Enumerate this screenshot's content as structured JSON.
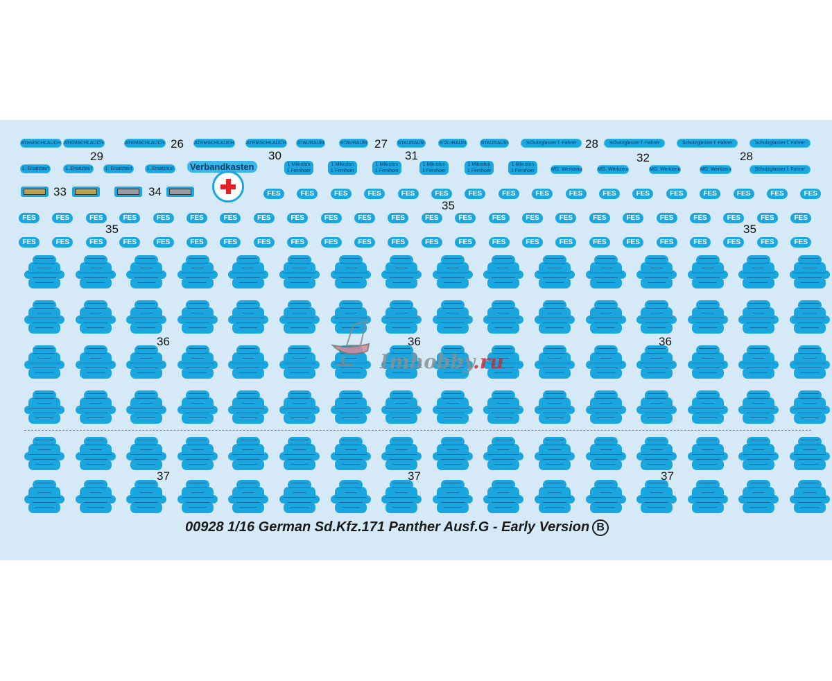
{
  "sheet": {
    "title": "00928 1/16 German Sd.Kfz.171 Panther Ausf.G - Early Version",
    "sheet_letter": "B",
    "colors": {
      "background": "#d5eaf6",
      "decal_blue": "#1aa7e0",
      "cross_red": "#e32129"
    },
    "row1": [
      {
        "label": "ATEMSCHLAUCH",
        "count": 5
      },
      {
        "label": "STAURAUM",
        "count": 5
      },
      {
        "label": "Schutzglasser f. Fahrer",
        "count": 4
      }
    ],
    "row2": [
      {
        "label": "1. Ersatzlauf",
        "count": 4
      },
      {
        "label": "1 Mikrofon / 1 Fernhoer",
        "count": 6
      },
      {
        "label": "MG. Werkzeug",
        "count": 4
      },
      {
        "label": "Schutzglasser f. Fahrer",
        "count": 1
      }
    ],
    "verbandkasten": "Verbandkasten",
    "fes_label": "FES",
    "numbers": {
      "n26": "26",
      "n27": "27",
      "n28": "28",
      "n29": "29",
      "n30": "30",
      "n31": "31",
      "n32": "32",
      "n33": "33",
      "n34": "34",
      "n35": "35",
      "n36": "36",
      "n37": "37"
    },
    "watermark": "Imhobby.ru"
  }
}
